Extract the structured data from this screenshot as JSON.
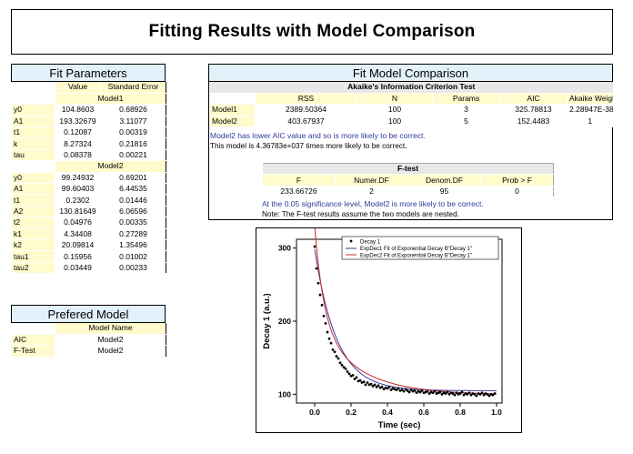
{
  "title": "Fitting Results with Model Comparison",
  "fit_params": {
    "title": "Fit Parameters",
    "col_value": "Value",
    "col_stderr": "Standard Error",
    "model1_label": "Model1",
    "model1_rows": [
      {
        "name": "y0",
        "value": "104.8603",
        "err": "0.68926"
      },
      {
        "name": "A1",
        "value": "193.32679",
        "err": "3.11077"
      },
      {
        "name": "t1",
        "value": "0.12087",
        "err": "0.00319"
      },
      {
        "name": "k",
        "value": "8.27324",
        "err": "0.21816"
      },
      {
        "name": "tau",
        "value": "0.08378",
        "err": "0.00221"
      }
    ],
    "model2_label": "Model2",
    "model2_rows": [
      {
        "name": "y0",
        "value": "99.24932",
        "err": "0.69201"
      },
      {
        "name": "A1",
        "value": "99.60403",
        "err": "6.44535"
      },
      {
        "name": "t1",
        "value": "0.2302",
        "err": "0.01446"
      },
      {
        "name": "A2",
        "value": "130.81649",
        "err": "6.06596"
      },
      {
        "name": "t2",
        "value": "0.04976",
        "err": "0.00335"
      },
      {
        "name": "k1",
        "value": "4.34408",
        "err": "0.27289"
      },
      {
        "name": "k2",
        "value": "20.09814",
        "err": "1.35496"
      },
      {
        "name": "tau1",
        "value": "0.15956",
        "err": "0.01002"
      },
      {
        "name": "tau2",
        "value": "0.03449",
        "err": "0.00233"
      }
    ]
  },
  "preferred": {
    "title": "Prefered Model",
    "col_label": "Model Name",
    "rows": [
      {
        "name": "AIC",
        "value": "Model2"
      },
      {
        "name": "F-Test",
        "value": "Model2"
      }
    ]
  },
  "comparison": {
    "title": "Fit Model Comparison",
    "aic_title": "Akaike's Information Criterion Test",
    "aic_headers": [
      "RSS",
      "N",
      "Params",
      "AIC",
      "Akaike Weight"
    ],
    "aic_rows": [
      {
        "name": "Model1",
        "cells": [
          "2389.50364",
          "100",
          "3",
          "325.78813",
          "2.28947E-38"
        ]
      },
      {
        "name": "Model2",
        "cells": [
          "403.67937",
          "100",
          "5",
          "152.4483",
          "1"
        ]
      }
    ],
    "aic_note_blue": "Model2 has lower AIC value and so is more likely to be correct.",
    "aic_note_black": "This model is 4.36783e+037 times more likely to be correct.",
    "ftest_title": "F-test",
    "ftest_headers": [
      "F",
      "Numer.DF",
      "Denom.DF",
      "Prob > F"
    ],
    "ftest_cells": [
      "233.66726",
      "2",
      "95",
      "0"
    ],
    "ftest_note_blue": "At the 0.05 significance level, Model2 is more likely to be correct.",
    "ftest_note_black": "Note: The F-test results assume the two models are nested."
  },
  "colors": {
    "header_bg": "#fffbcc",
    "title_bg": "#e3f1fa",
    "note_blue": "#2f3b9a",
    "data_symbol": "#000000",
    "model1_line": "#3b3b9e",
    "model2_line": "#c62828"
  },
  "chart_data": {
    "type": "scatter",
    "xlabel": "Time (sec)",
    "ylabel": "Decay 1 (a.u.)",
    "xlim": [
      -0.1,
      1.03
    ],
    "ylim": [
      88,
      312
    ],
    "xticks": [
      "0.0",
      "0.2",
      "0.4",
      "0.6",
      "0.8",
      "1.0"
    ],
    "yticks": [
      "100",
      "200",
      "300"
    ],
    "legend": {
      "placement": "top-right",
      "entries": [
        "Decay 1",
        "ExpDec1 Fit of Exponential Decay B\"Decay 1\"",
        "ExpDec2 Fit of Exponential Decay B\"Decay 1\""
      ]
    },
    "series": [
      {
        "name": "Decay 1",
        "kind": "points",
        "x": [
          0.0,
          0.01,
          0.02,
          0.03,
          0.04,
          0.05,
          0.06,
          0.07,
          0.08,
          0.09,
          0.1,
          0.11,
          0.12,
          0.13,
          0.14,
          0.15,
          0.16,
          0.17,
          0.18,
          0.19,
          0.2,
          0.21,
          0.22,
          0.23,
          0.24,
          0.25,
          0.26,
          0.27,
          0.28,
          0.29,
          0.3,
          0.31,
          0.32,
          0.33,
          0.34,
          0.35,
          0.36,
          0.37,
          0.38,
          0.39,
          0.4,
          0.41,
          0.42,
          0.43,
          0.44,
          0.45,
          0.46,
          0.47,
          0.48,
          0.49,
          0.5,
          0.51,
          0.52,
          0.53,
          0.54,
          0.55,
          0.56,
          0.57,
          0.58,
          0.59,
          0.6,
          0.61,
          0.62,
          0.63,
          0.64,
          0.65,
          0.66,
          0.67,
          0.68,
          0.69,
          0.7,
          0.71,
          0.72,
          0.73,
          0.74,
          0.75,
          0.76,
          0.77,
          0.78,
          0.79,
          0.8,
          0.81,
          0.82,
          0.83,
          0.84,
          0.85,
          0.86,
          0.87,
          0.88,
          0.89,
          0.9,
          0.91,
          0.92,
          0.93,
          0.94,
          0.95,
          0.96,
          0.97,
          0.98,
          0.99
        ],
        "y": [
          302,
          272,
          252,
          236,
          222,
          207,
          197,
          185,
          176,
          170,
          161,
          158,
          152,
          149,
          143,
          140,
          137,
          135,
          131,
          128,
          125,
          126,
          121,
          123,
          118,
          119,
          116,
          117,
          113,
          116,
          113,
          114,
          111,
          113,
          110,
          112,
          109,
          110,
          107,
          109,
          108,
          110,
          106,
          108,
          107,
          106,
          108,
          105,
          106,
          104,
          107,
          105,
          103,
          106,
          104,
          105,
          102,
          104,
          103,
          105,
          102,
          103,
          104,
          101,
          103,
          102,
          104,
          101,
          102,
          103,
          100,
          102,
          101,
          103,
          100,
          102,
          101,
          99,
          102,
          100,
          101,
          103,
          99,
          101,
          100,
          102,
          99,
          101,
          100,
          98,
          101,
          100,
          102,
          99,
          101,
          100,
          98,
          100,
          99,
          101
        ]
      },
      {
        "name": "ExpDec1 Fit of Exponential Decay B\"Decay 1\"",
        "kind": "line",
        "model": "expdec1",
        "params": {
          "y0": 104.8603,
          "A1": 193.32679,
          "t1": 0.12087
        }
      },
      {
        "name": "ExpDec2 Fit of Exponential Decay B\"Decay 1\"",
        "kind": "line",
        "model": "expdec2",
        "params": {
          "y0": 99.24932,
          "A1": 99.60403,
          "t1": 0.2302,
          "A2": 130.81649,
          "t2": 0.04976
        }
      }
    ]
  }
}
